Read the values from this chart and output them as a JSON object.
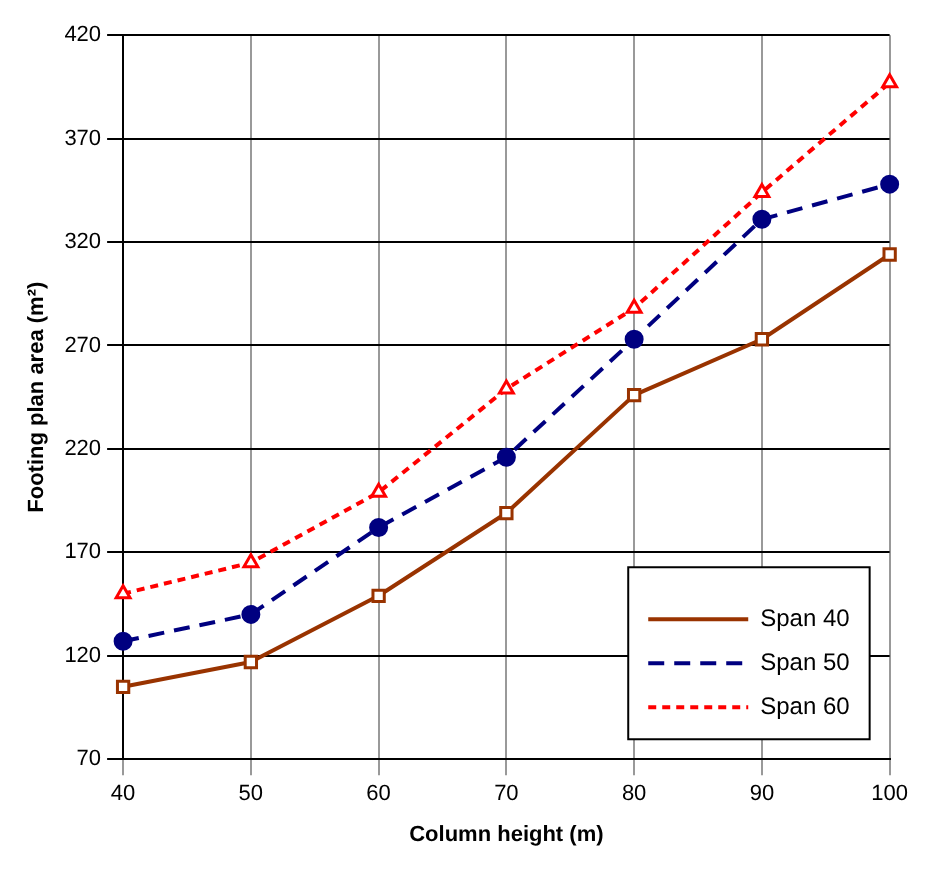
{
  "chart_data": {
    "type": "line",
    "xlabel": "Column height (m)",
    "ylabel": "Footing plan area (m²)",
    "x": [
      40,
      50,
      60,
      70,
      80,
      90,
      100
    ],
    "series": [
      {
        "name": "Span 40",
        "color": "#993300",
        "values": [
          105,
          117,
          149,
          189,
          246,
          273,
          314
        ],
        "marker": "square",
        "line_style": "solid"
      },
      {
        "name": "Span 50",
        "color": "#000080",
        "values": [
          127,
          140,
          182,
          216,
          273,
          331,
          348
        ],
        "marker": "circle",
        "line_style": "dashed"
      },
      {
        "name": "Span 60",
        "color": "#ff0000",
        "values": [
          150,
          165,
          199,
          249,
          288,
          344,
          397
        ],
        "marker": "triangle",
        "line_style": "dotted"
      }
    ],
    "xlim": [
      40,
      100
    ],
    "xticks": [
      40,
      50,
      60,
      70,
      80,
      90,
      100
    ],
    "ylim": [
      70,
      420
    ],
    "yticks": [
      70,
      120,
      170,
      220,
      270,
      320,
      370,
      420
    ],
    "grid": true,
    "legend": "bottom right"
  }
}
